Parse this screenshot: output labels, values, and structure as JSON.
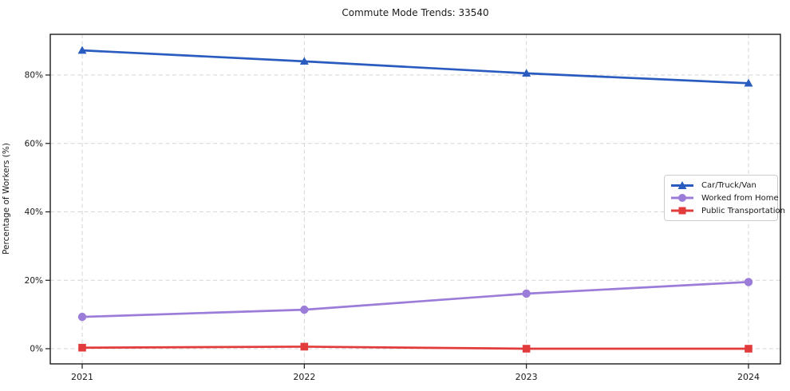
{
  "title": "Commute Mode Trends: 33540",
  "chart_data": {
    "type": "line",
    "title": "Commute Mode Trends: 33540",
    "x": [
      2021,
      2022,
      2023,
      2024
    ],
    "x_tick_labels": [
      "2021",
      "2022",
      "2023",
      "2024"
    ],
    "xlabel": "",
    "ylabel": "Percentage of Workers (%)",
    "y_ticks": [
      0,
      20,
      40,
      60,
      80
    ],
    "y_tick_labels": [
      "0%",
      "20%",
      "40%",
      "60%",
      "80%"
    ],
    "ylim": [
      -4.5,
      92
    ],
    "grid": "dashed both axes",
    "legend_position": "center right inside plot",
    "series": [
      {
        "name": "Car/Truck/Van",
        "marker": "triangle",
        "color": "#2a5cbf",
        "values": [
          87.2,
          84.0,
          80.5,
          77.6
        ]
      },
      {
        "name": "Worked from Home",
        "marker": "circle",
        "color": "#9c7cd9",
        "values": [
          9.3,
          11.4,
          16.1,
          19.5
        ]
      },
      {
        "name": "Public Transportation",
        "marker": "square",
        "color": "#e23b3c",
        "values": [
          0.3,
          0.6,
          0.0,
          0.0
        ]
      }
    ]
  }
}
